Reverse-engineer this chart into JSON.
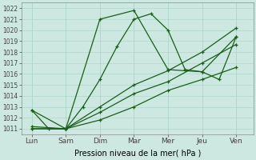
{
  "xlabel": "Pression niveau de la mer( hPa )",
  "x_tick_labels": [
    "Lun",
    "Sam",
    "Dim",
    "Mar",
    "Mer",
    "Jeu",
    "Ven"
  ],
  "x_tick_positions": [
    0,
    1,
    2,
    3,
    4,
    5,
    6
  ],
  "ylim": [
    1010.5,
    1022.5
  ],
  "yticks": [
    1011,
    1012,
    1013,
    1014,
    1015,
    1016,
    1017,
    1018,
    1019,
    1020,
    1021,
    1022
  ],
  "background_color": "#cce8e0",
  "grid_color": "#b0d8cc",
  "line_color": "#1a5e1a",
  "series": [
    {
      "x": [
        0,
        1,
        2,
        3,
        4,
        5,
        6
      ],
      "y": [
        1012.7,
        1011.0,
        1021.0,
        1021.8,
        1016.4,
        1016.2,
        1019.4
      ]
    },
    {
      "x": [
        0,
        0.5,
        1.0,
        1.5,
        2.0,
        2.5,
        3.0,
        3.5,
        4.0,
        4.5,
        5.0,
        5.5,
        6.0
      ],
      "y": [
        1012.7,
        1011.0,
        1011.0,
        1013.0,
        1015.5,
        1018.5,
        1021.0,
        1021.5,
        1020.0,
        1016.4,
        1016.2,
        1015.5,
        1019.4
      ]
    },
    {
      "x": [
        0,
        1,
        2,
        3,
        4,
        5,
        6
      ],
      "y": [
        1011.2,
        1011.0,
        1013.0,
        1015.0,
        1016.3,
        1018.0,
        1020.2
      ]
    },
    {
      "x": [
        0,
        1,
        2,
        3,
        4,
        5,
        6
      ],
      "y": [
        1011.0,
        1011.0,
        1012.5,
        1014.2,
        1015.3,
        1017.0,
        1018.7
      ]
    },
    {
      "x": [
        0,
        1,
        2,
        3,
        4,
        5,
        6
      ],
      "y": [
        1011.0,
        1011.0,
        1011.8,
        1013.0,
        1014.5,
        1015.5,
        1016.6
      ]
    }
  ]
}
